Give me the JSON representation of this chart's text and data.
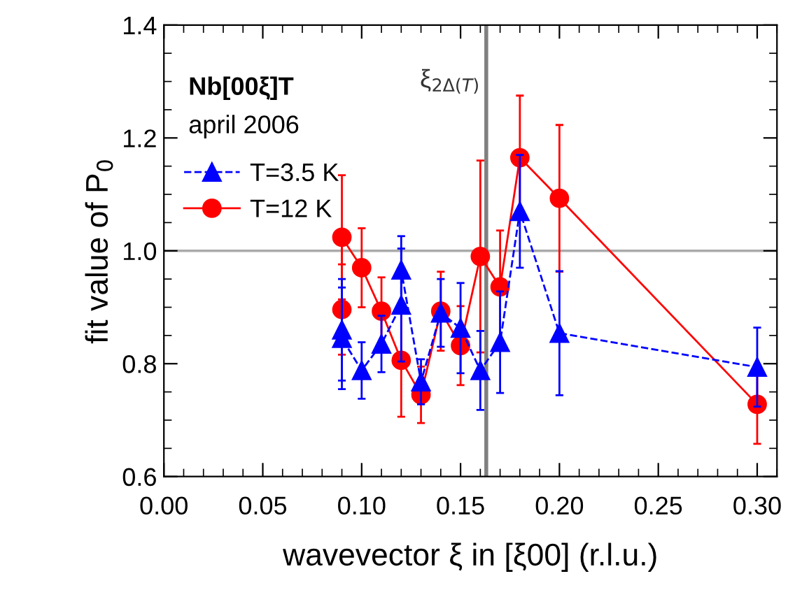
{
  "chart_data": {
    "type": "line",
    "xlabel": "wavevector ξ in [ξ00] (r.l.u.)",
    "ylabel": "fit value of P$_{0}$",
    "annotations": [
      "Nb[00ξ]T",
      "april 2006"
    ],
    "series": [
      {
        "name": "T=3.5 K",
        "color": "#0000ff",
        "marker": "triangle",
        "line_style": "dashed",
        "x": [
          0.09,
          0.09,
          0.1,
          0.11,
          0.12,
          0.12,
          0.13,
          0.14,
          0.15,
          0.16,
          0.17,
          0.18,
          0.2,
          0.3
        ],
        "values": [
          0.86,
          0.845,
          0.788,
          0.835,
          0.904,
          0.966,
          0.768,
          0.89,
          0.863,
          0.788,
          0.838,
          1.07,
          0.854,
          0.794
        ],
        "errors": [
          0.09,
          0.09,
          0.05,
          0.05,
          0.1,
          0.06,
          0.04,
          0.06,
          0.08,
          0.07,
          0.09,
          0.1,
          0.11,
          0.07
        ]
      },
      {
        "name": "T=12 K",
        "color": "#ff0000",
        "marker": "circle",
        "line_style": "solid",
        "x": [
          0.09,
          0.09,
          0.1,
          0.11,
          0.12,
          0.13,
          0.14,
          0.15,
          0.16,
          0.17,
          0.18,
          0.2,
          0.3
        ],
        "values": [
          0.896,
          1.024,
          0.97,
          0.893,
          0.806,
          0.745,
          0.893,
          0.832,
          0.99,
          0.936,
          1.165,
          1.093,
          0.728
        ],
        "errors": [
          0.08,
          0.11,
          0.07,
          0.06,
          0.1,
          0.05,
          0.07,
          0.07,
          0.17,
          0.1,
          0.11,
          0.13,
          0.07
        ]
      }
    ],
    "xlim": [
      0,
      0.31
    ],
    "xticks": [
      {
        "value": 0,
        "label": "0.00"
      },
      0.05,
      {
        "value": 0.1,
        "label": "0.10"
      },
      0.15,
      {
        "value": 0.2,
        "label": "0.20"
      },
      0.25,
      {
        "value": 0.3,
        "label": "0.30"
      }
    ],
    "ylim": [
      0.6,
      1.4
    ],
    "yticks": [
      0.6,
      0.8,
      {
        "value": 1.0,
        "label": "1.0"
      },
      1.2,
      1.4
    ],
    "ref_lines": [
      {
        "axis": "y",
        "value": 1.0,
        "color": "#aaaaaa"
      },
      {
        "axis": "x",
        "value": 0.163,
        "label": "ξ$_{2Δ(T)}$",
        "color": "#808080"
      }
    ],
    "legend": "top left",
    "grid": false
  }
}
